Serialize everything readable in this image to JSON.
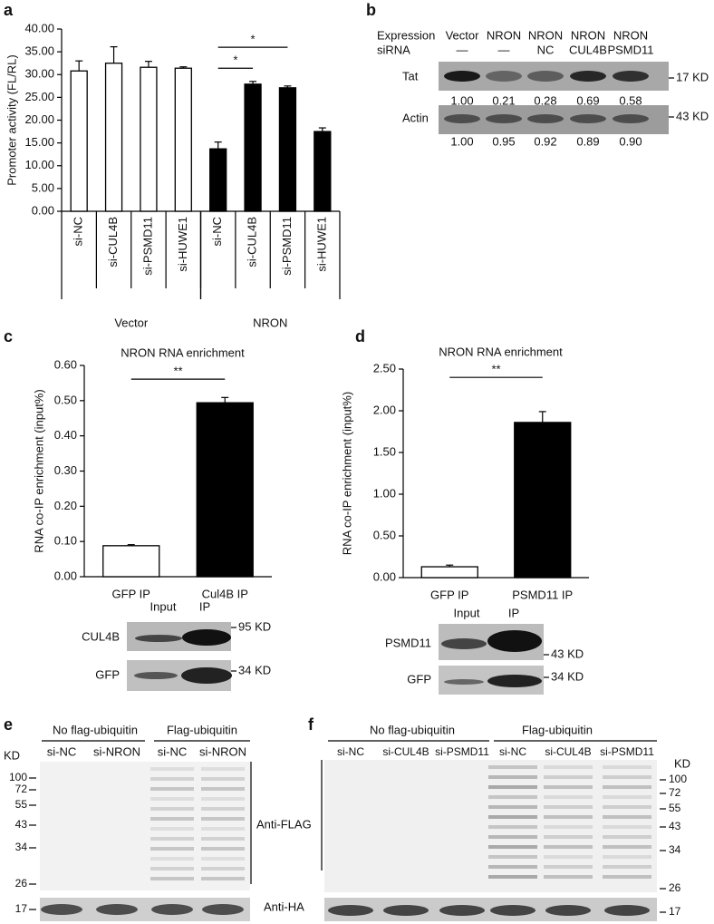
{
  "panel_labels": [
    "a",
    "b",
    "c",
    "d",
    "e",
    "f"
  ],
  "chart_data": [
    {
      "type": "bar",
      "y_label": "Promoter activity (FL/RL)",
      "categories": [
        "si-NC",
        "si-CUL4B",
        "si-PSMD11",
        "si-HUWE1",
        "si-NC",
        "si-CUL4B",
        "si-PSMD11",
        "si-HUWE1"
      ],
      "series": [
        {
          "name": "Vector",
          "color": "#ffffff",
          "values": [
            30.8,
            32.5,
            31.6,
            31.4,
            null,
            null,
            null,
            null
          ],
          "errors": [
            2.2,
            3.6,
            1.3,
            0.3,
            null,
            null,
            null,
            null
          ]
        },
        {
          "name": "NRON",
          "color": "#000000",
          "values": [
            null,
            null,
            null,
            null,
            13.7,
            27.9,
            27.1,
            17.5
          ],
          "errors": [
            null,
            null,
            null,
            null,
            1.5,
            0.6,
            0.4,
            0.8
          ]
        }
      ],
      "ylim": [
        0,
        40
      ],
      "yticks": [
        {
          "value": 0,
          "label": "0.00"
        },
        {
          "value": 5,
          "label": "5.00"
        },
        {
          "value": 10,
          "label": "10.00"
        },
        {
          "value": 15,
          "label": "15.00"
        },
        {
          "value": 20,
          "label": "20.00"
        },
        {
          "value": 25,
          "label": "25.00"
        },
        {
          "value": 30,
          "label": "30.00"
        },
        {
          "value": 35,
          "label": "35.00"
        },
        {
          "value": 40,
          "label": "40.00"
        }
      ],
      "annotations": [
        {
          "text": "*",
          "from": 4,
          "to": 5,
          "y": 31.4
        },
        {
          "text": "*",
          "from": 4,
          "to": 6,
          "y": 36.0
        }
      ]
    },
    {
      "type": "bar",
      "title": "NRON RNA enrichment",
      "y_label": "RNA co-IP enrichment (input%)",
      "categories": [
        "GFP IP",
        "Cul4B IP"
      ],
      "values": [
        0.088,
        0.494
      ],
      "errors": [
        0.003,
        0.015
      ],
      "colors": [
        "#ffffff",
        "#000000"
      ],
      "ylim": [
        0,
        0.6
      ],
      "yticks": [
        {
          "value": 0,
          "label": "0.00"
        },
        {
          "value": 0.1,
          "label": "0.10"
        },
        {
          "value": 0.2,
          "label": "0.20"
        },
        {
          "value": 0.3,
          "label": "0.30"
        },
        {
          "value": 0.4,
          "label": "0.40"
        },
        {
          "value": 0.5,
          "label": "0.50"
        },
        {
          "value": 0.6,
          "label": "0.60"
        }
      ],
      "annotations": [
        {
          "text": "**",
          "from": 0,
          "to": 1,
          "y": 0.561
        }
      ]
    },
    {
      "type": "bar",
      "title": "NRON RNA enrichment",
      "y_label": "RNA co-IP enrichment (input%)",
      "categories": [
        "GFP IP",
        "PSMD11 IP"
      ],
      "values": [
        0.13,
        1.86
      ],
      "errors": [
        0.02,
        0.13
      ],
      "colors": [
        "#ffffff",
        "#000000"
      ],
      "ylim": [
        0,
        2.5
      ],
      "yticks": [
        {
          "value": 0,
          "label": "0.00"
        },
        {
          "value": 0.5,
          "label": "0.50"
        },
        {
          "value": 1,
          "label": "1.00"
        },
        {
          "value": 1.5,
          "label": "1.50"
        },
        {
          "value": 2,
          "label": "2.00"
        },
        {
          "value": 2.5,
          "label": "2.50"
        }
      ],
      "annotations": [
        {
          "text": "**",
          "from": 0,
          "to": 1,
          "y": 2.4
        }
      ]
    }
  ],
  "blot_b": {
    "row_headers": [
      "Expression",
      "siRNA"
    ],
    "columns": [
      [
        "Vector",
        "—"
      ],
      [
        "NRON",
        "—"
      ],
      [
        "NRON",
        "NC"
      ],
      [
        "NRON",
        "CUL4B"
      ],
      [
        "NRON",
        "PSMD11"
      ]
    ],
    "rows": [
      {
        "label": "Tat",
        "size": "17 KD",
        "values": [
          "1.00",
          "0.21",
          "0.28",
          "0.69",
          "0.58"
        ]
      },
      {
        "label": "Actin",
        "size": "43 KD",
        "values": [
          "1.00",
          "0.95",
          "0.92",
          "0.89",
          "0.90"
        ]
      }
    ]
  },
  "blot_c": {
    "lanes": [
      "Input",
      "IP"
    ],
    "rows": [
      {
        "label": "CUL4B",
        "size": "95 KD"
      },
      {
        "label": "GFP",
        "size": "34 KD"
      }
    ]
  },
  "blot_d": {
    "lanes": [
      "Input",
      "IP"
    ],
    "rows": [
      {
        "label": "PSMD11",
        "size": "43 KD"
      },
      {
        "label": "GFP",
        "size": "34 KD"
      }
    ]
  },
  "blot_e": {
    "groups": [
      "No flag-ubiquitin",
      "Flag-ubiquitin"
    ],
    "lanes": [
      "si-NC",
      "si-NRON",
      "si-NC",
      "si-NRON"
    ],
    "unit": "KD",
    "markers": [
      "100",
      "72",
      "55",
      "43",
      "34",
      "26",
      "17"
    ],
    "antibodies": [
      "Anti-FLAG",
      "Anti-HA"
    ]
  },
  "blot_f": {
    "groups": [
      "No flag-ubiquitin",
      "Flag-ubiquitin"
    ],
    "lanes": [
      "si-NC",
      "si-CUL4B",
      "si-PSMD11",
      "si-NC",
      "si-CUL4B",
      "si-PSMD11"
    ],
    "unit": "KD",
    "markers": [
      "100",
      "72",
      "55",
      "43",
      "34",
      "26",
      "17"
    ]
  }
}
